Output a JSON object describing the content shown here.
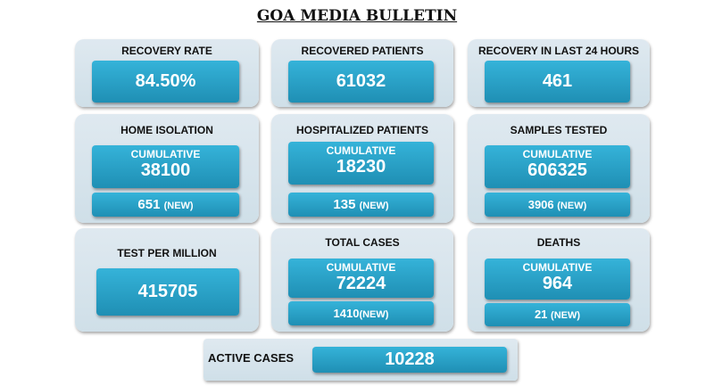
{
  "title": "GOA MEDIA BULLETIN",
  "recovery_rate": {
    "label": "RECOVERY RATE",
    "value": "84.50%"
  },
  "recovered": {
    "label": "RECOVERED PATIENTS",
    "value": "61032"
  },
  "recovery_24h": {
    "label": "RECOVERY IN LAST 24 HOURS",
    "value": "461"
  },
  "home_isolation": {
    "label": "HOME ISOLATION",
    "cum_label": "CUMULATIVE",
    "cumulative": "38100",
    "new": "651",
    "new_label": "(NEW)"
  },
  "hospitalized": {
    "label": "HOSPITALIZED PATIENTS",
    "cum_label": "CUMULATIVE",
    "cumulative": "18230",
    "new": "135",
    "new_label": "(NEW)"
  },
  "samples": {
    "label": "SAMPLES TESTED",
    "cum_label": "CUMULATIVE",
    "cumulative": "606325",
    "new": "3906",
    "new_label": "(NEW)"
  },
  "test_per_million": {
    "label": "TEST PER MILLION",
    "value": "415705"
  },
  "total_cases": {
    "label": "TOTAL CASES",
    "cum_label": "CUMULATIVE",
    "cumulative": "72224",
    "new": "1410",
    "new_label": "(NEW)"
  },
  "deaths": {
    "label": "DEATHS",
    "cum_label": "CUMULATIVE",
    "cumulative": "964",
    "new": "21",
    "new_label": "(NEW)"
  },
  "active": {
    "label": "ACTIVE CASES",
    "value": "10228"
  }
}
